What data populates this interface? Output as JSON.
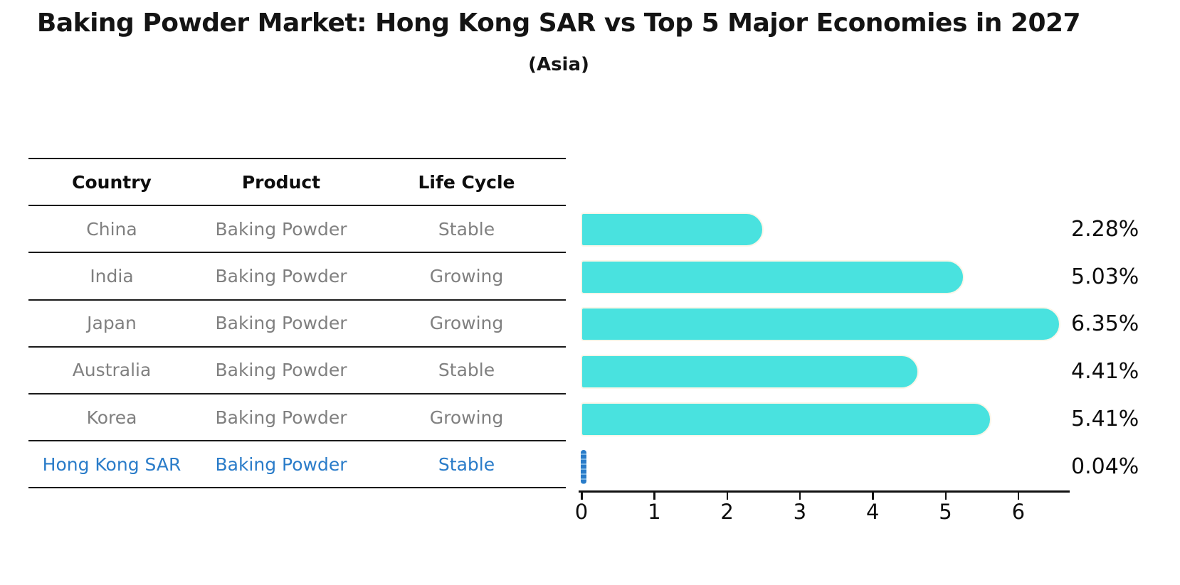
{
  "title": "Baking Powder Market: Hong Kong SAR vs Top 5 Major Economies in 2027",
  "subtitle": "(Asia)",
  "table": {
    "headers": [
      "Country",
      "Product",
      "Life Cycle"
    ],
    "rows": [
      {
        "country": "China",
        "product": "Baking Powder",
        "life_cycle": "Stable",
        "highlight": false
      },
      {
        "country": "India",
        "product": "Baking Powder",
        "life_cycle": "Growing",
        "highlight": false
      },
      {
        "country": "Japan",
        "product": "Baking Powder",
        "life_cycle": "Growing",
        "highlight": false
      },
      {
        "country": "Australia",
        "product": "Baking Powder",
        "life_cycle": "Stable",
        "highlight": false
      },
      {
        "country": "Korea",
        "product": "Baking Powder",
        "life_cycle": "Growing",
        "highlight": false
      },
      {
        "country": "Hong Kong SAR",
        "product": "Baking Powder",
        "life_cycle": "Stable",
        "highlight": true
      }
    ]
  },
  "chart_data": {
    "type": "bar",
    "orientation": "horizontal",
    "categories": [
      "China",
      "India",
      "Japan",
      "Australia",
      "Korea",
      "Hong Kong SAR"
    ],
    "values": [
      2.28,
      5.03,
      6.35,
      4.41,
      5.41,
      0.04
    ],
    "value_labels": [
      "2.28%",
      "5.03%",
      "6.35%",
      "4.41%",
      "5.41%",
      "0.04%"
    ],
    "highlight_index": 5,
    "x_ticks": [
      0,
      1,
      2,
      3,
      4,
      5,
      6
    ],
    "xlim": [
      0,
      6.7
    ],
    "grid": false,
    "legend": false,
    "bar_color": "#49E2DF",
    "highlight_color": "#2A7CC9",
    "title": "Baking Powder Market: Hong Kong SAR vs Top 5 Major Economies in 2027",
    "subtitle": "(Asia)",
    "xlabel": "",
    "ylabel": ""
  },
  "colors": {
    "text_black": "#141414",
    "table_text_gray": "#808080",
    "highlight_blue": "#2A7CC9",
    "bar_cyan": "#49E2DF",
    "axis_black": "#111111"
  }
}
